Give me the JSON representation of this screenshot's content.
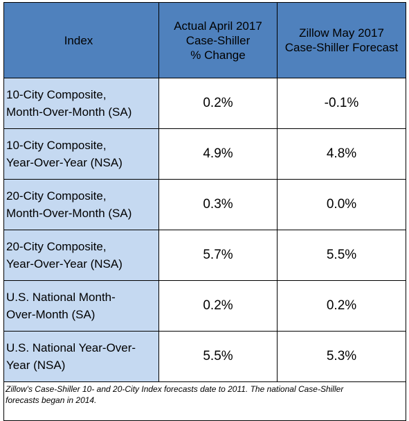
{
  "header": {
    "col_index": "Index",
    "col_actual_lines": [
      "Actual April 2017",
      "Case-Shiller",
      "% Change"
    ],
    "col_forecast_lines": [
      "Zillow May 2017",
      "Case-Shiller Forecast"
    ]
  },
  "rows": [
    {
      "label_lines": [
        "10-City Composite,",
        "Month-Over-Month (SA)"
      ],
      "actual": "0.2%",
      "forecast": "-0.1%"
    },
    {
      "label_lines": [
        "10-City Composite,",
        "Year-Over-Year (NSA)"
      ],
      "actual": "4.9%",
      "forecast": "4.8%"
    },
    {
      "label_lines": [
        "20-City Composite,",
        "Month-Over-Month (SA)"
      ],
      "actual": "0.3%",
      "forecast": "0.0%"
    },
    {
      "label_lines": [
        "20-City Composite,",
        "Year-Over-Year (NSA)"
      ],
      "actual": "5.7%",
      "forecast": "5.5%"
    },
    {
      "label_lines": [
        "U.S. National Month-",
        "Over-Month (SA)"
      ],
      "actual": "0.2%",
      "forecast": "0.2%"
    },
    {
      "label_lines": [
        "U.S. National Year-Over-",
        "Year (NSA)"
      ],
      "actual": "5.5%",
      "forecast": "5.3%"
    }
  ],
  "footnote_lines": [
    "Zillow's Case-Shiller 10- and 20-City Index forecasts date to 2011.  The national Case-Shiller",
    "forecasts began in 2014."
  ],
  "colors": {
    "header_bg": "#4f81bd",
    "label_bg": "#c5d9f1",
    "cell_bg": "#ffffff",
    "border": "#000000"
  }
}
